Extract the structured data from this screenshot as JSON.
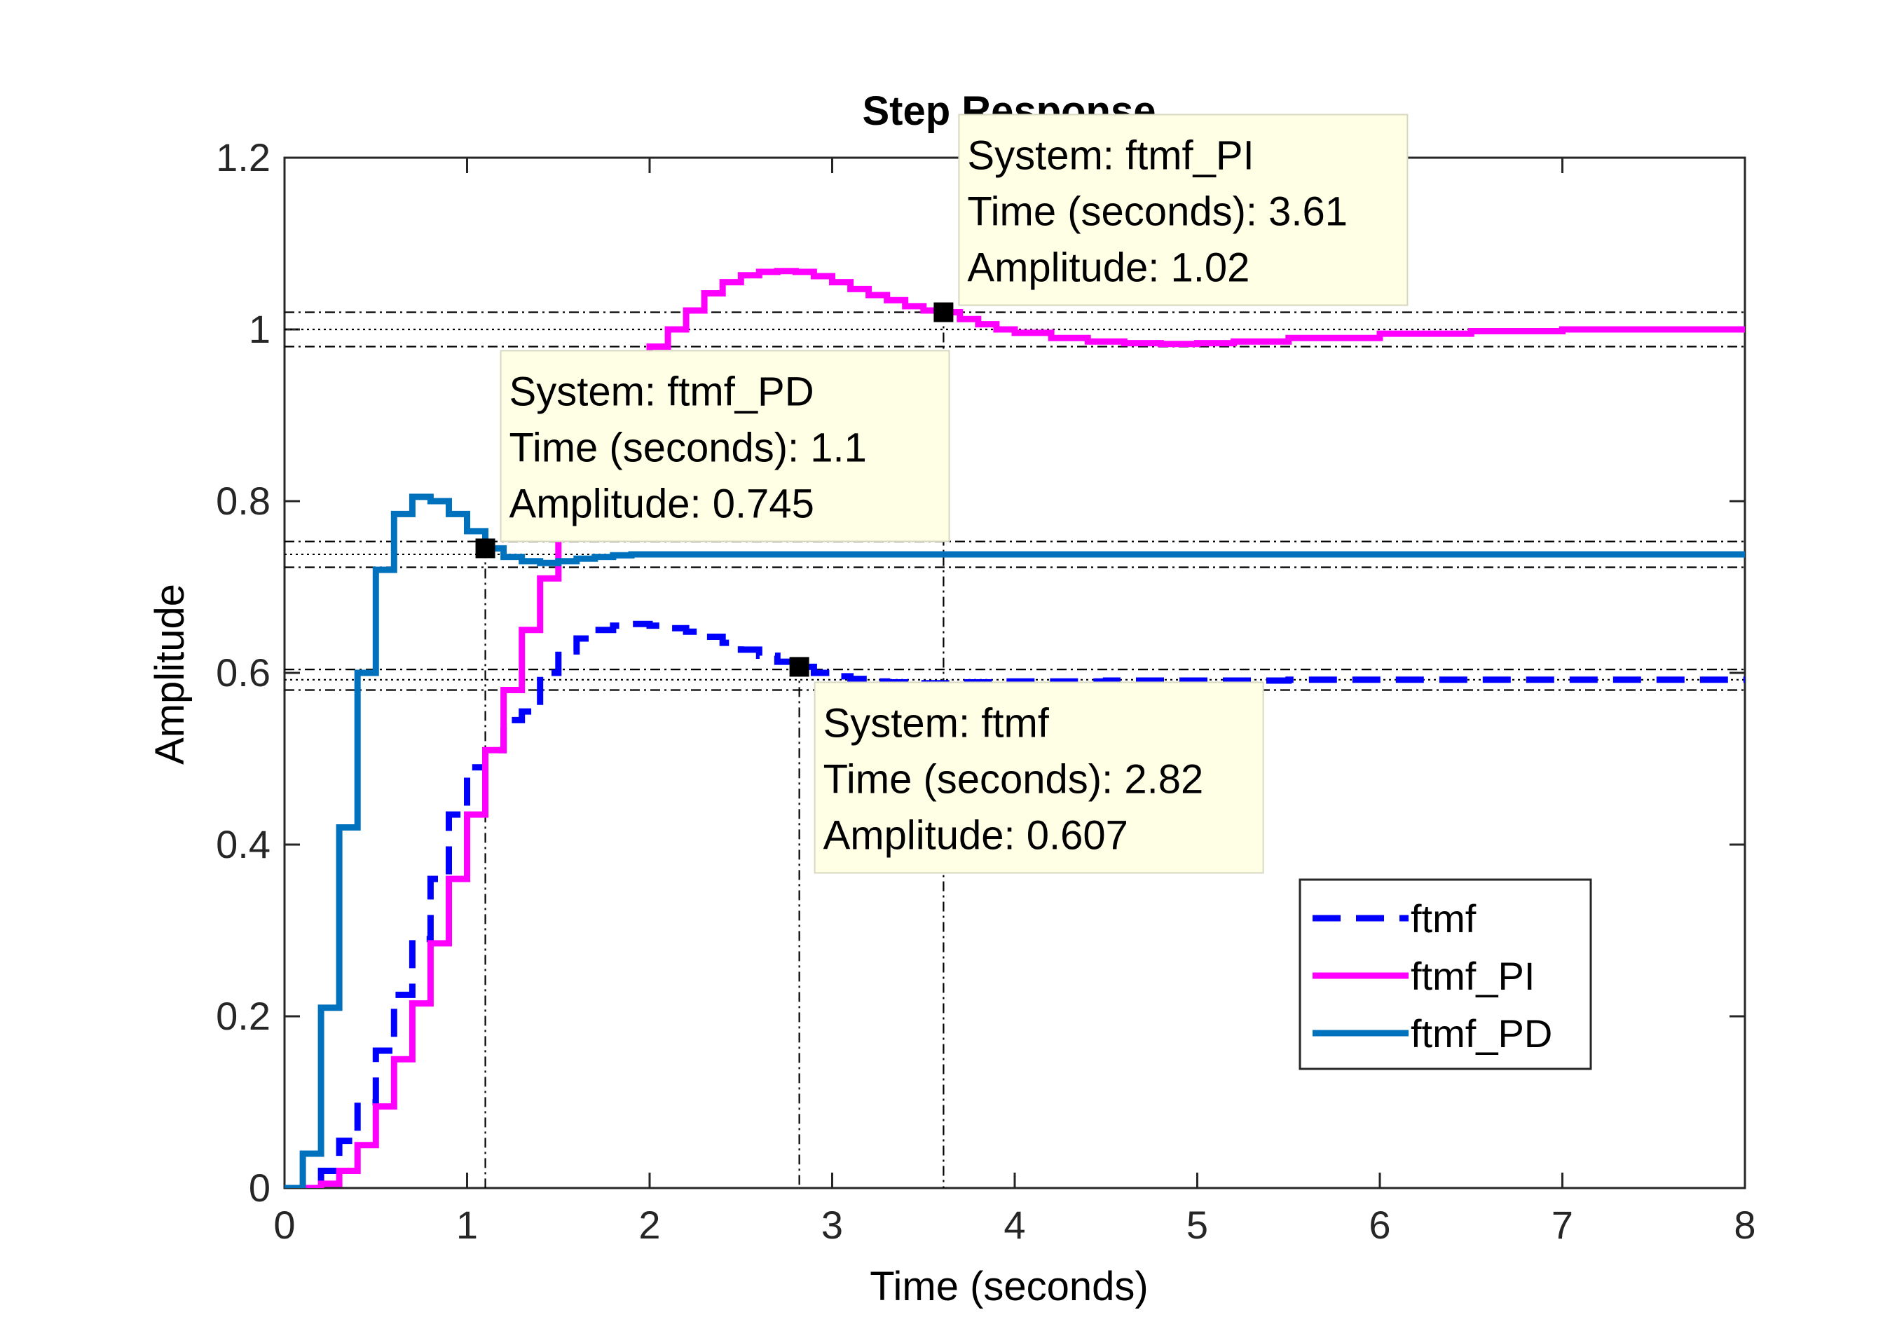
{
  "chart_data": {
    "type": "line",
    "title": "Step Response",
    "xlabel": "Time (seconds)",
    "ylabel": "Amplitude",
    "xlim": [
      0,
      8
    ],
    "ylim": [
      0,
      1.2
    ],
    "xticks": [
      0,
      1,
      2,
      3,
      4,
      5,
      6,
      7,
      8
    ],
    "yticks": [
      0,
      0.2,
      0.4,
      0.6,
      0.8,
      1,
      1.2
    ],
    "xtick_labels": [
      "0",
      "1",
      "2",
      "3",
      "4",
      "5",
      "6",
      "7",
      "8"
    ],
    "ytick_labels": [
      "0",
      "0.2",
      "0.4",
      "0.6",
      "0.8",
      "1",
      "1.2"
    ],
    "grid": false,
    "legend_position": "bottom-right",
    "step_style": "stairs",
    "series": [
      {
        "name": "ftmf",
        "color": "#0000ff",
        "dash": "dashed",
        "x": [
          0,
          0.1,
          0.2,
          0.3,
          0.4,
          0.5,
          0.6,
          0.7,
          0.8,
          0.9,
          1.0,
          1.1,
          1.2,
          1.3,
          1.4,
          1.5,
          1.6,
          1.7,
          1.8,
          1.9,
          2.0,
          2.1,
          2.2,
          2.3,
          2.4,
          2.5,
          2.6,
          2.7,
          2.8,
          2.9,
          3.0,
          3.1,
          3.2,
          3.3,
          3.4,
          3.5,
          3.6,
          3.7,
          3.8,
          3.9,
          4.0,
          4.5,
          5.0,
          5.5,
          6.0,
          6.5,
          7.0,
          7.5,
          8.0
        ],
        "y": [
          0,
          0,
          0.02,
          0.055,
          0.1,
          0.16,
          0.225,
          0.29,
          0.36,
          0.435,
          0.49,
          0.51,
          0.545,
          0.555,
          0.6,
          0.625,
          0.64,
          0.65,
          0.655,
          0.657,
          0.655,
          0.652,
          0.648,
          0.642,
          0.635,
          0.627,
          0.62,
          0.613,
          0.607,
          0.6,
          0.596,
          0.593,
          0.59,
          0.589,
          0.588,
          0.588,
          0.588,
          0.589,
          0.589,
          0.59,
          0.59,
          0.591,
          0.591,
          0.592,
          0.592,
          0.592,
          0.592,
          0.592,
          0.592
        ]
      },
      {
        "name": "ftmf_PI",
        "color": "#ff00ff",
        "dash": "solid",
        "x": [
          0,
          0.1,
          0.2,
          0.3,
          0.4,
          0.5,
          0.6,
          0.7,
          0.8,
          0.9,
          1.0,
          1.1,
          1.2,
          1.3,
          1.4,
          1.5,
          1.6,
          1.7,
          1.8,
          1.9,
          2.0,
          2.1,
          2.2,
          2.3,
          2.4,
          2.5,
          2.6,
          2.7,
          2.8,
          2.9,
          3.0,
          3.1,
          3.2,
          3.3,
          3.4,
          3.5,
          3.6,
          3.7,
          3.8,
          3.9,
          4.0,
          4.2,
          4.4,
          4.6,
          4.8,
          5.0,
          5.2,
          5.5,
          6.0,
          6.5,
          7.0,
          7.5,
          8.0
        ],
        "y": [
          0,
          0,
          0.005,
          0.02,
          0.05,
          0.095,
          0.15,
          0.215,
          0.285,
          0.36,
          0.435,
          0.51,
          0.58,
          0.65,
          0.71,
          0.765,
          0.815,
          0.86,
          0.9,
          0.94,
          0.98,
          1.0,
          1.022,
          1.042,
          1.055,
          1.063,
          1.067,
          1.068,
          1.067,
          1.062,
          1.055,
          1.047,
          1.04,
          1.034,
          1.027,
          1.022,
          1.02,
          1.012,
          1.006,
          1.0,
          0.996,
          0.99,
          0.986,
          0.984,
          0.983,
          0.984,
          0.986,
          0.99,
          0.995,
          0.998,
          1.0,
          1.0,
          1.0
        ]
      },
      {
        "name": "ftmf_PD",
        "color": "#0072bd",
        "dash": "solid",
        "x": [
          0,
          0.1,
          0.2,
          0.3,
          0.4,
          0.5,
          0.6,
          0.7,
          0.8,
          0.9,
          1.0,
          1.1,
          1.2,
          1.3,
          1.4,
          1.5,
          1.6,
          1.7,
          1.8,
          1.9,
          2.0,
          2.5,
          3.0,
          4.0,
          5.0,
          6.0,
          7.0,
          8.0
        ],
        "y": [
          0,
          0.04,
          0.21,
          0.42,
          0.6,
          0.72,
          0.785,
          0.805,
          0.8,
          0.785,
          0.765,
          0.745,
          0.735,
          0.73,
          0.728,
          0.73,
          0.733,
          0.735,
          0.737,
          0.738,
          0.738,
          0.738,
          0.738,
          0.738,
          0.738,
          0.738,
          0.738,
          0.738
        ]
      }
    ],
    "settling_bands": [
      {
        "series": "ftmf",
        "final": 0.592,
        "upper": 0.604,
        "lower": 0.58
      },
      {
        "series": "ftmf_PI",
        "final": 1.0,
        "upper": 1.02,
        "lower": 0.98
      },
      {
        "series": "ftmf_PD",
        "final": 0.738,
        "upper": 0.753,
        "lower": 0.723
      }
    ],
    "annotations": [
      {
        "series": "ftmf_PI",
        "x": 3.61,
        "y": 1.02,
        "box_position": "upper-right",
        "lines": [
          "System: ftmf_PI",
          "Time (seconds): 3.61",
          "Amplitude: 1.02"
        ]
      },
      {
        "series": "ftmf_PD",
        "x": 1.1,
        "y": 0.745,
        "box_position": "upper-right",
        "lines": [
          "System: ftmf_PD",
          "Time (seconds): 1.1",
          "Amplitude: 0.745"
        ]
      },
      {
        "series": "ftmf",
        "x": 2.82,
        "y": 0.607,
        "box_position": "lower-right",
        "lines": [
          "System: ftmf",
          "Time (seconds): 2.82",
          "Amplitude: 0.607"
        ]
      }
    ]
  }
}
